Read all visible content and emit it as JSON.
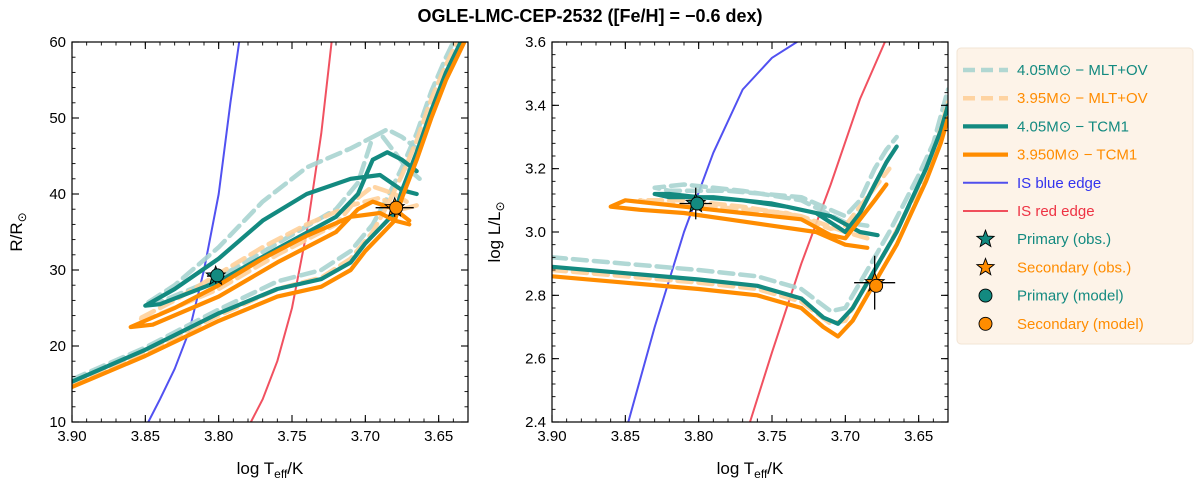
{
  "chart_data": {
    "type": "line",
    "title": "OGLE-LMC-CEP-2532 ([Fe/H] = −0.6 dex)",
    "colors": {
      "teal": "#138a80",
      "orange": "#ff8c00",
      "teal_light": "#a9d4d0",
      "orange_light": "#ffd09a",
      "blue": "#3333ee",
      "red": "#ee3344"
    },
    "legend": {
      "placement": "right",
      "entries": [
        {
          "label": "4.05M⊙ − MLT+OV",
          "style": "dash",
          "color": "teal_light"
        },
        {
          "label": "3.95M⊙ − MLT+OV",
          "style": "dash",
          "color": "orange_light"
        },
        {
          "label": "4.05M⊙ − TCM1",
          "style": "solid-thick",
          "color": "teal"
        },
        {
          "label": "3.950M⊙ − TCM1",
          "style": "solid-thick",
          "color": "orange"
        },
        {
          "label": "IS blue edge",
          "style": "solid-thin",
          "color": "blue"
        },
        {
          "label": "IS red edge",
          "style": "solid-thin",
          "color": "red"
        },
        {
          "label": "Primary (obs.)",
          "style": "star",
          "color": "teal"
        },
        {
          "label": "Secondary (obs.)",
          "style": "star",
          "color": "orange"
        },
        {
          "label": "Primary (model)",
          "style": "dot",
          "color": "teal"
        },
        {
          "label": "Secondary (model)",
          "style": "dot",
          "color": "orange"
        }
      ]
    },
    "panels": [
      {
        "id": "radius",
        "xlabel": "log Teff/K",
        "ylabel": "R/R⊙",
        "xlim": [
          3.9,
          3.63
        ],
        "ylim": [
          10,
          60
        ],
        "xticks": [
          3.9,
          3.85,
          3.8,
          3.75,
          3.7,
          3.65
        ],
        "xtick_labels": [
          "3.90",
          "3.85",
          "3.80",
          "3.75",
          "3.70",
          "3.65"
        ],
        "yticks": [
          10,
          20,
          30,
          40,
          50,
          60
        ],
        "ytick_labels": [
          "10",
          "20",
          "30",
          "40",
          "50",
          "60"
        ],
        "series": [
          {
            "name": "4.05M⊙ − MLT+OV",
            "color": "teal_light",
            "style": "dash",
            "x": [
              3.9,
              3.85,
              3.8,
              3.76,
              3.73,
              3.71,
              3.695,
              3.685,
              3.675,
              3.665,
              3.655,
              3.645,
              3.635,
              3.63
            ],
            "y": [
              15.6,
              19.8,
              24.8,
              28.5,
              30.0,
              32.5,
              36.0,
              39.5,
              43.5,
              48.0,
              53.5,
              58.0,
              62.0,
              64.0
            ]
          },
          {
            "name": "4.05M⊙ − MLT+OV loop",
            "color": "teal_light",
            "style": "dash",
            "x": [
              3.663,
              3.672,
              3.69,
              3.71,
              3.74,
              3.77,
              3.8,
              3.83,
              3.85,
              3.84,
              3.8,
              3.76,
              3.72,
              3.705,
              3.695,
              3.685,
              3.675,
              3.665
            ],
            "y": [
              42.0,
              43.5,
              48.0,
              46.0,
              43.5,
              39.0,
              33.0,
              28.0,
              25.5,
              25.8,
              29.0,
              33.5,
              38.0,
              41.5,
              47.5,
              48.5,
              47.5,
              46.0
            ]
          },
          {
            "name": "3.95M⊙ − MLT+OV",
            "color": "orange_light",
            "style": "dash",
            "x": [
              3.9,
              3.85,
              3.8,
              3.76,
              3.73,
              3.71,
              3.695,
              3.685,
              3.675,
              3.665,
              3.655,
              3.645,
              3.635,
              3.63
            ],
            "y": [
              15.1,
              19.2,
              24.0,
              27.5,
              29.0,
              31.5,
              35.0,
              38.5,
              42.5,
              47.0,
              52.5,
              57.0,
              61.0,
              63.0
            ]
          },
          {
            "name": "3.95M⊙ − MLT+OV loop",
            "color": "orange_light",
            "style": "dash",
            "x": [
              3.665,
              3.675,
              3.69,
              3.71,
              3.74,
              3.77,
              3.8,
              3.83,
              3.855,
              3.845,
              3.8,
              3.76,
              3.72,
              3.705,
              3.695,
              3.68,
              3.668
            ],
            "y": [
              38.5,
              38.0,
              39.5,
              38.5,
              36.0,
              33.0,
              29.5,
              26.0,
              23.5,
              23.8,
              27.5,
              32.0,
              36.0,
              39.5,
              41.0,
              40.0,
              38.5
            ]
          },
          {
            "name": "4.05M⊙ − TCM1",
            "color": "teal",
            "style": "solid-thick",
            "x": [
              3.9,
              3.85,
              3.8,
              3.76,
              3.73,
              3.71,
              3.7,
              3.69,
              3.68,
              3.675,
              3.665,
              3.655,
              3.645,
              3.635,
              3.63
            ],
            "y": [
              15.3,
              19.5,
              24.3,
              27.5,
              28.8,
              31.0,
              33.5,
              35.5,
              37.5,
              40.5,
              45.5,
              51.0,
              56.0,
              60.0,
              62.0
            ]
          },
          {
            "name": "4.05M⊙ − TCM1 loop",
            "color": "teal",
            "style": "solid-thick",
            "x": [
              3.665,
              3.675,
              3.69,
              3.71,
              3.74,
              3.77,
              3.8,
              3.83,
              3.85,
              3.84,
              3.8,
              3.76,
              3.72,
              3.705,
              3.695,
              3.685,
              3.675,
              3.665
            ],
            "y": [
              40.0,
              40.5,
              42.5,
              42.0,
              40.0,
              36.5,
              31.5,
              27.5,
              25.3,
              25.5,
              28.5,
              32.8,
              37.0,
              40.0,
              44.5,
              45.5,
              44.5,
              43.0
            ]
          },
          {
            "name": "3.950M⊙ − TCM1",
            "color": "orange",
            "style": "solid-thick",
            "x": [
              3.9,
              3.85,
              3.8,
              3.76,
              3.73,
              3.71,
              3.7,
              3.69,
              3.68,
              3.675,
              3.665,
              3.655,
              3.645,
              3.635,
              3.63
            ],
            "y": [
              14.6,
              18.7,
              23.3,
              26.5,
              27.8,
              30.0,
              32.5,
              34.5,
              36.5,
              39.5,
              44.5,
              50.0,
              55.0,
              59.0,
              61.0
            ]
          },
          {
            "name": "3.950M⊙ − TCM1 loop",
            "color": "orange",
            "style": "solid-thick",
            "x": [
              3.67,
              3.68,
              3.69,
              3.71,
              3.74,
              3.77,
              3.8,
              3.83,
              3.86,
              3.845,
              3.8,
              3.76,
              3.72,
              3.705,
              3.695,
              3.68,
              3.67
            ],
            "y": [
              36.0,
              36.5,
              37.5,
              37.0,
              34.5,
              31.5,
              28.0,
              25.0,
              22.5,
              22.8,
              26.5,
              31.0,
              35.0,
              38.0,
              39.0,
              38.0,
              36.5
            ]
          },
          {
            "name": "IS blue edge",
            "color": "blue",
            "style": "solid-thin",
            "x": [
              3.848,
              3.84,
              3.83,
              3.82,
              3.81,
              3.8,
              3.792,
              3.786
            ],
            "y": [
              10,
              13,
              17,
              22,
              30,
              40,
              52,
              60
            ]
          },
          {
            "name": "IS red edge",
            "color": "red",
            "style": "solid-thin",
            "x": [
              3.778,
              3.77,
              3.76,
              3.75,
              3.74,
              3.73,
              3.723
            ],
            "y": [
              10,
              13,
              18,
              25,
              35,
              48,
              60
            ]
          }
        ],
        "points": [
          {
            "name": "Primary (obs.)",
            "kind": "star",
            "color": "teal",
            "x": 3.802,
            "y": 29.2,
            "xerr": 0.006,
            "yerr": 1.0
          },
          {
            "name": "Secondary (obs.)",
            "kind": "star",
            "color": "orange",
            "x": 3.68,
            "y": 38.2,
            "xerr": 0.013,
            "yerr": 1.2
          },
          {
            "name": "Primary (model)",
            "kind": "dot",
            "color": "teal",
            "x": 3.801,
            "y": 29.3
          },
          {
            "name": "Secondary (model)",
            "kind": "dot",
            "color": "orange",
            "x": 3.679,
            "y": 38.2
          }
        ]
      },
      {
        "id": "luminosity",
        "xlabel": "log Teff/K",
        "ylabel": "log L/L⊙",
        "xlim": [
          3.9,
          3.63
        ],
        "ylim": [
          2.4,
          3.6
        ],
        "xticks": [
          3.9,
          3.85,
          3.8,
          3.75,
          3.7,
          3.65
        ],
        "xtick_labels": [
          "3.90",
          "3.85",
          "3.80",
          "3.75",
          "3.70",
          "3.65"
        ],
        "yticks": [
          2.4,
          2.6,
          2.8,
          3.0,
          3.2,
          3.4,
          3.6
        ],
        "ytick_labels": [
          "2.4",
          "2.6",
          "2.8",
          "3.0",
          "3.2",
          "3.4",
          "3.6"
        ],
        "series": [
          {
            "name": "4.05M⊙ − MLT+OV",
            "color": "teal_light",
            "style": "dash",
            "x": [
              3.9,
              3.85,
              3.8,
              3.76,
              3.73,
              3.71,
              3.7,
              3.69,
              3.68,
              3.67,
              3.66,
              3.65,
              3.64,
              3.63
            ],
            "y": [
              2.92,
              2.9,
              2.88,
              2.86,
              2.82,
              2.75,
              2.76,
              2.84,
              2.92,
              3.0,
              3.09,
              3.18,
              3.28,
              3.45
            ]
          },
          {
            "name": "4.05M⊙ − MLT+OV loop",
            "color": "teal_light",
            "style": "dash",
            "x": [
              3.685,
              3.7,
              3.73,
              3.77,
              3.81,
              3.83,
              3.82,
              3.78,
              3.73,
              3.7,
              3.69,
              3.68,
              3.672,
              3.665
            ],
            "y": [
              3.02,
              3.03,
              3.1,
              3.13,
              3.15,
              3.14,
              3.13,
              3.13,
              3.11,
              3.05,
              3.1,
              3.2,
              3.26,
              3.3
            ]
          },
          {
            "name": "3.95M⊙ − MLT+OV",
            "color": "orange_light",
            "style": "dash",
            "x": [
              3.9,
              3.85,
              3.8,
              3.76,
              3.73,
              3.71,
              3.7,
              3.69,
              3.68,
              3.67,
              3.66,
              3.65,
              3.64,
              3.63
            ],
            "y": [
              2.88,
              2.86,
              2.84,
              2.82,
              2.78,
              2.71,
              2.72,
              2.8,
              2.88,
              2.96,
              3.05,
              3.14,
              3.24,
              3.41
            ]
          },
          {
            "name": "3.95M⊙ − MLT+OV loop",
            "color": "orange_light",
            "style": "dash",
            "x": [
              3.685,
              3.7,
              3.73,
              3.77,
              3.81,
              3.84,
              3.83,
              3.79,
              3.74,
              3.71,
              3.7,
              3.69,
              3.68,
              3.67
            ],
            "y": [
              2.98,
              3.0,
              3.05,
              3.08,
              3.1,
              3.1,
              3.09,
              3.08,
              3.06,
              3.01,
              3.02,
              3.08,
              3.14,
              3.2
            ]
          },
          {
            "name": "4.05M⊙ − TCM1",
            "color": "teal",
            "style": "solid-thick",
            "x": [
              3.9,
              3.85,
              3.8,
              3.76,
              3.73,
              3.715,
              3.705,
              3.695,
              3.685,
              3.675,
              3.665,
              3.655,
              3.645,
              3.635,
              3.63
            ],
            "y": [
              2.89,
              2.87,
              2.85,
              2.83,
              2.79,
              2.73,
              2.71,
              2.76,
              2.84,
              2.92,
              3.0,
              3.1,
              3.2,
              3.32,
              3.4
            ]
          },
          {
            "name": "4.05M⊙ − TCM1 loop",
            "color": "teal",
            "style": "solid-thick",
            "x": [
              3.678,
              3.69,
              3.71,
              3.74,
              3.77,
              3.8,
              3.82,
              3.83,
              3.82,
              3.79,
              3.75,
              3.72,
              3.7,
              3.69,
              3.68,
              3.672,
              3.665
            ],
            "y": [
              2.99,
              3.0,
              3.05,
              3.08,
              3.1,
              3.11,
              3.12,
              3.12,
              3.11,
              3.11,
              3.09,
              3.06,
              3.0,
              3.06,
              3.15,
              3.22,
              3.27
            ]
          },
          {
            "name": "3.950M⊙ − TCM1",
            "color": "orange",
            "style": "solid-thick",
            "x": [
              3.9,
              3.85,
              3.8,
              3.76,
              3.73,
              3.715,
              3.705,
              3.695,
              3.685,
              3.675,
              3.665,
              3.655,
              3.645,
              3.635,
              3.63
            ],
            "y": [
              2.86,
              2.84,
              2.82,
              2.8,
              2.76,
              2.7,
              2.67,
              2.72,
              2.8,
              2.88,
              2.96,
              3.06,
              3.16,
              3.28,
              3.36
            ]
          },
          {
            "name": "3.950M⊙ − TCM1 loop",
            "color": "orange",
            "style": "solid-thick",
            "x": [
              3.685,
              3.7,
              3.72,
              3.75,
              3.78,
              3.81,
              3.84,
              3.86,
              3.85,
              3.81,
              3.77,
              3.73,
              3.71,
              3.7,
              3.69,
              3.68,
              3.672
            ],
            "y": [
              2.95,
              2.96,
              3.0,
              3.02,
              3.04,
              3.06,
              3.07,
              3.08,
              3.1,
              3.08,
              3.06,
              3.04,
              2.99,
              2.98,
              3.04,
              3.1,
              3.15
            ]
          },
          {
            "name": "IS blue edge",
            "color": "blue",
            "style": "solid-thin",
            "x": [
              3.848,
              3.83,
              3.81,
              3.79,
              3.77,
              3.75,
              3.733
            ],
            "y": [
              2.4,
              2.7,
              3.0,
              3.25,
              3.45,
              3.55,
              3.6
            ]
          },
          {
            "name": "IS red edge",
            "color": "red",
            "style": "solid-thin",
            "x": [
              3.765,
              3.75,
              3.73,
              3.71,
              3.69,
              3.673
            ],
            "y": [
              2.4,
              2.62,
              2.9,
              3.15,
              3.42,
              3.6
            ]
          }
        ],
        "points": [
          {
            "name": "Primary (obs.)",
            "kind": "star",
            "color": "teal",
            "x": 3.802,
            "y": 3.09,
            "xerr": 0.011,
            "yerr": 0.05
          },
          {
            "name": "Secondary (obs.)",
            "kind": "star",
            "color": "orange",
            "x": 3.68,
            "y": 2.84,
            "xerr": 0.014,
            "yerr": 0.085
          },
          {
            "name": "Primary (model)",
            "kind": "dot",
            "color": "teal",
            "x": 3.801,
            "y": 3.09
          },
          {
            "name": "Secondary (model)",
            "kind": "dot",
            "color": "orange",
            "x": 3.679,
            "y": 2.83
          }
        ]
      }
    ]
  }
}
